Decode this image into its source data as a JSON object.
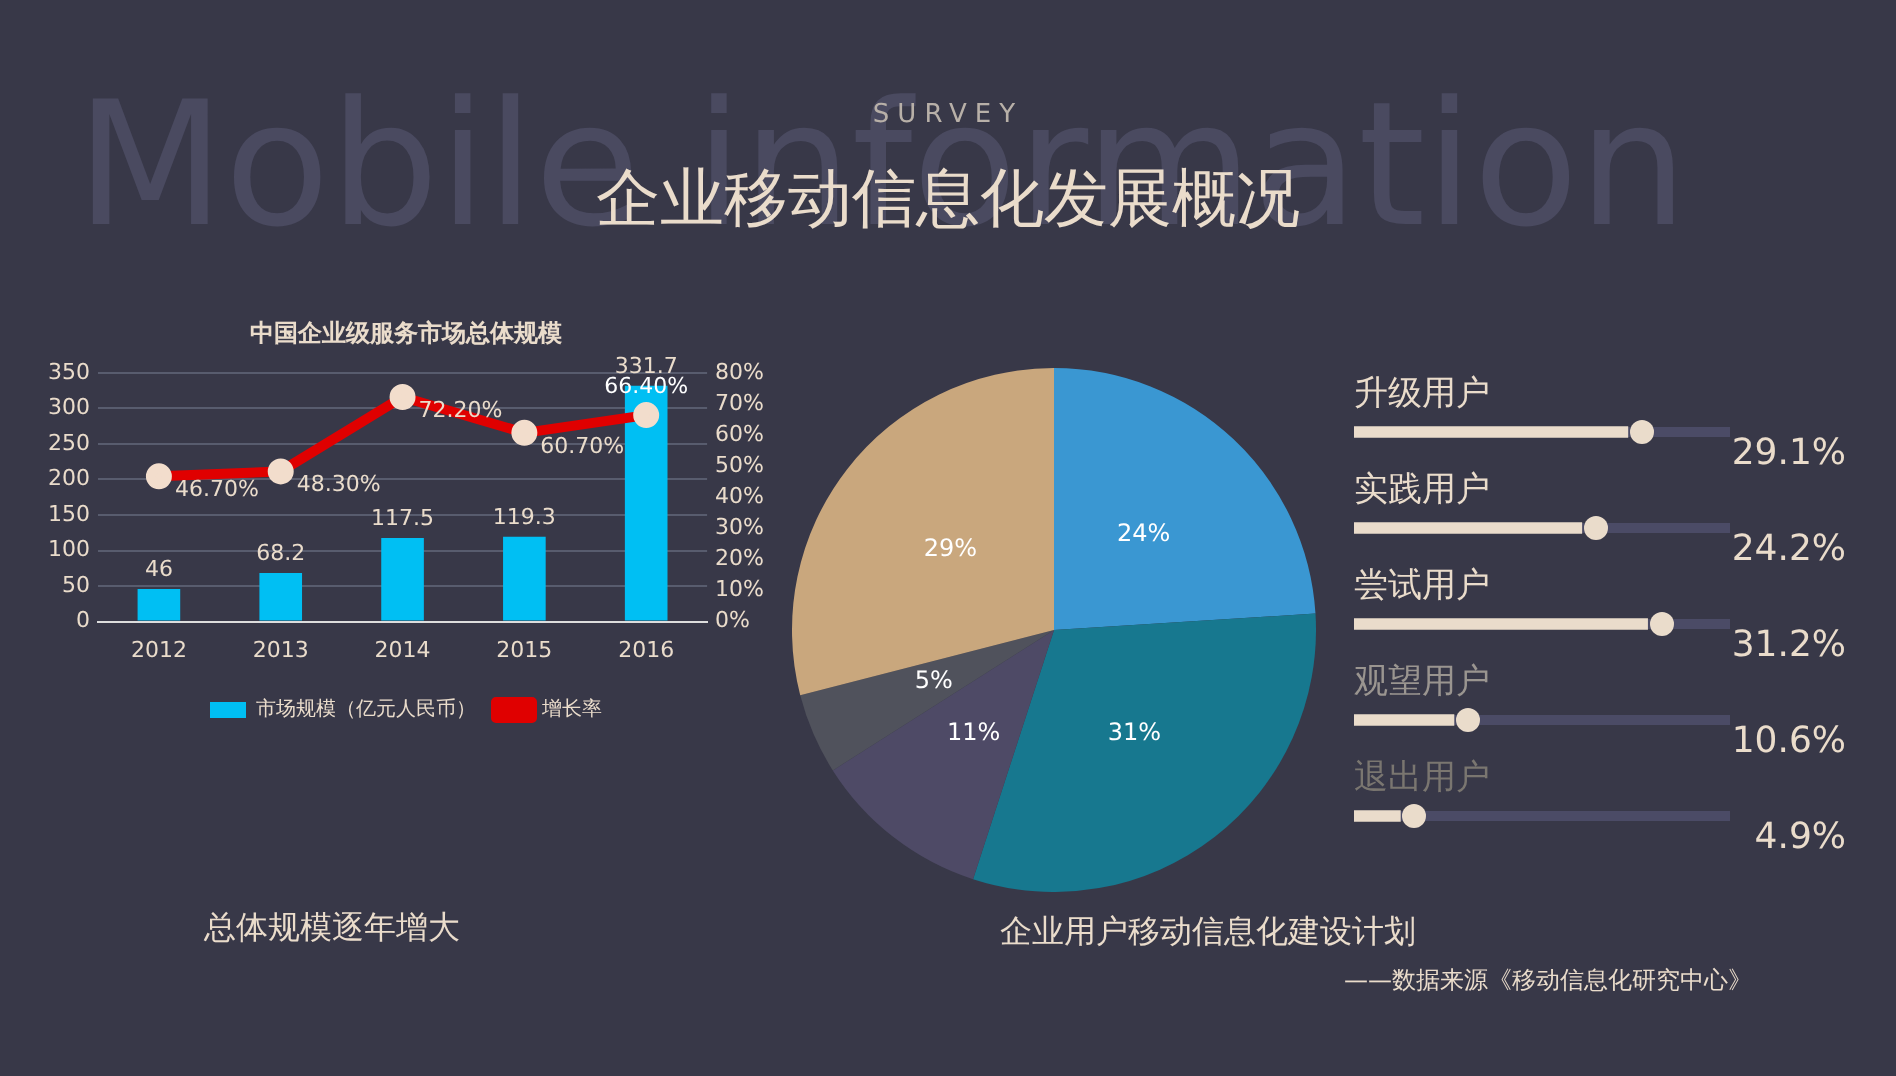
{
  "chart_data": [
    {
      "type": "other",
      "title": "企业移动信息化发展概况",
      "subtitle": "SURVEY",
      "annotations": [
        "Mobile information"
      ]
    },
    {
      "type": "bar",
      "title": "中国企业级服务市场总体规模",
      "categories": [
        "2012",
        "2013",
        "2014",
        "2015",
        "2016"
      ],
      "series": [
        {
          "name": "市场规模（亿元人民币）",
          "type": "bar",
          "color": "#00bff3",
          "values": [
            46,
            68.2,
            117.5,
            119.3,
            331.7
          ],
          "value_labels": [
            "46",
            "68.2",
            "117.5",
            "119.3",
            "331.7"
          ]
        },
        {
          "name": "增长率",
          "type": "line",
          "axis": "y2",
          "color": "#e00000",
          "values": [
            46.7,
            48.3,
            72.2,
            60.7,
            66.4
          ],
          "value_labels": [
            "46.70%",
            "48.30%",
            "72.20%",
            "60.70%",
            "66.40%"
          ]
        }
      ],
      "ylim": [
        0,
        350
      ],
      "yticks": [
        0,
        50,
        100,
        150,
        200,
        250,
        300,
        350
      ],
      "y2lim": [
        0,
        80
      ],
      "y2ticks": [
        {
          "value": 0,
          "label": "0%"
        },
        {
          "value": 10,
          "label": "10%"
        },
        {
          "value": 20,
          "label": "20%"
        },
        {
          "value": 30,
          "label": "30%"
        },
        {
          "value": 40,
          "label": "40%"
        },
        {
          "value": 50,
          "label": "50%"
        },
        {
          "value": 60,
          "label": "60%"
        },
        {
          "value": 70,
          "label": "70%"
        },
        {
          "value": 80,
          "label": "80%"
        }
      ],
      "grid": "y",
      "legend": "bottom",
      "marker": "circle",
      "annotations": [
        "总体规模逐年增大"
      ]
    },
    {
      "type": "pie",
      "title": "企业用户移动信息化建设计划",
      "categories": [
        null,
        null,
        null,
        null,
        null
      ],
      "values": [
        24,
        31,
        11,
        5,
        29
      ],
      "colors": [
        "#3a97d2",
        "#17788f",
        "#4e4a66",
        "#50525c",
        "#c9a77d"
      ],
      "value_labels": [
        "24%",
        "31%",
        "11%",
        "5%",
        "29%"
      ],
      "annotations": [
        "——数据来源《移动信息化研究中心》"
      ]
    },
    {
      "type": "bar",
      "orientation": "horizontal",
      "categories": [
        "升级用户",
        "实践用户",
        "尝试用户",
        "观望用户",
        "退出用户"
      ],
      "values": [
        29.1,
        24.2,
        31.2,
        10.6,
        4.9
      ],
      "value_labels": [
        "29.1%",
        "24.2%",
        "31.2%",
        "10.6%",
        "4.9%"
      ],
      "color": "#eadccb",
      "tick_labels": false
    }
  ]
}
